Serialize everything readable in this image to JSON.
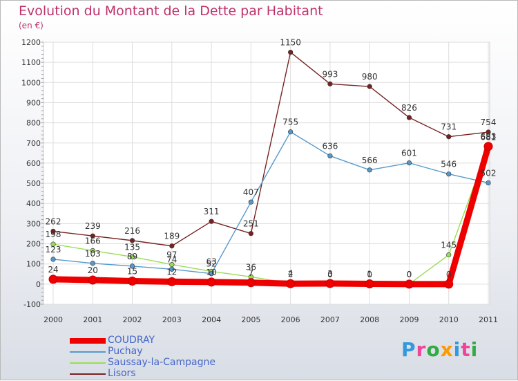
{
  "header": {
    "title": "Evolution du Montant de la Dette par Habitant",
    "subtitle": "(en €)"
  },
  "logo": {
    "text": "Proxiti",
    "colors": [
      "#3399dd",
      "#ee4499",
      "#33aa44",
      "#ff9900",
      "#3399dd",
      "#ee4499",
      "#33aa44"
    ]
  },
  "chart_data": {
    "type": "line",
    "title": "Evolution du Montant de la Dette par Habitant",
    "subtitle": "(en €)",
    "x": [
      "2000",
      "2001",
      "2002",
      "2003",
      "2004",
      "2005",
      "2006",
      "2007",
      "2008",
      "2009",
      "2010",
      "2011"
    ],
    "ylim": [
      -100,
      1200
    ],
    "yticks": [
      -100,
      0,
      100,
      200,
      300,
      400,
      500,
      600,
      700,
      800,
      900,
      1000,
      1100,
      1200
    ],
    "grid": true,
    "legend_position": "bottom-left",
    "series": [
      {
        "name": "COUDRAY",
        "color": "#ee0000",
        "values": [
          24,
          20,
          15,
          12,
          10,
          7,
          2,
          3,
          1,
          0,
          0,
          683
        ],
        "labels": [
          "24",
          "20",
          "15",
          "12",
          "10",
          "7",
          "2",
          "3",
          "1",
          "0",
          "0",
          "683"
        ]
      },
      {
        "name": "Puchay",
        "color": "#5599cc",
        "values": [
          123,
          103,
          89,
          74,
          52,
          407,
          755,
          636,
          566,
          601,
          546,
          502
        ],
        "labels": [
          "123",
          "103",
          "89",
          "74",
          "52",
          "407",
          "755",
          "636",
          "566",
          "601",
          "546",
          "502"
        ]
      },
      {
        "name": "Saussay-la-Campagne",
        "color": "#99dd55",
        "values": [
          198,
          166,
          135,
          97,
          63,
          36,
          4,
          0,
          0,
          0,
          145,
          681
        ],
        "labels": [
          "198",
          "166",
          "135",
          "97",
          "63",
          "36",
          "4",
          "0",
          "0",
          "0",
          "145",
          "681"
        ]
      },
      {
        "name": "Lisors",
        "color": "#772222",
        "values": [
          262,
          239,
          216,
          189,
          311,
          251,
          1150,
          993,
          980,
          826,
          731,
          754
        ],
        "labels": [
          "262",
          "239",
          "216",
          "189",
          "311",
          "251",
          "1150",
          "993",
          "980",
          "826",
          "731",
          "754"
        ]
      }
    ]
  }
}
